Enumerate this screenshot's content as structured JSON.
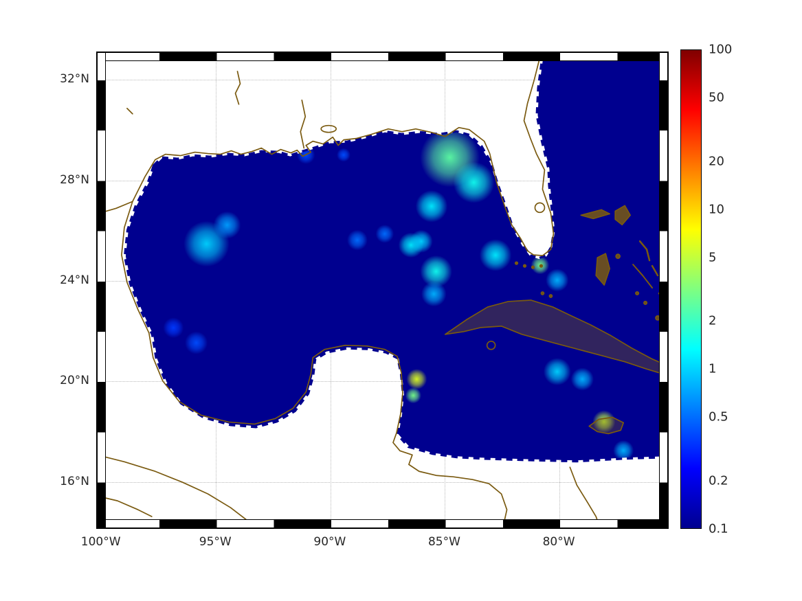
{
  "figure": {
    "colors": {
      "background": "#ffffff",
      "land": "#ffffff",
      "ocean_base": "#00008f",
      "coast": "#7a5a10",
      "grid": "#b9b9b9",
      "tick_label": "#262626",
      "frame_dark": "#000000",
      "frame_light": "#ffffff"
    }
  },
  "chart_data": {
    "type": "heatmap",
    "title": "",
    "description": "Geographic heatmap of the Gulf of Mexico and northwestern Caribbean; log-scaled field (0.1 to 100) over ocean, background value about 0.1 (dark blue) with localized elevated plumes; land white with brown coastlines; jet colormap colorbar at right.",
    "geo": {
      "lon_min": -100.2,
      "lon_max": -75.2,
      "lat_min": 14.1,
      "lat_max": 33.1
    },
    "x_axis": {
      "label": "",
      "ticks": [
        {
          "label": "100°W",
          "lon": -100
        },
        {
          "label": "95°W",
          "lon": -95
        },
        {
          "label": "90°W",
          "lon": -90
        },
        {
          "label": "85°W",
          "lon": -85
        },
        {
          "label": "80°W",
          "lon": -80
        }
      ]
    },
    "y_axis": {
      "label": "",
      "ticks": [
        {
          "label": "16°N",
          "lat": 16
        },
        {
          "label": "20°N",
          "lat": 20
        },
        {
          "label": "24°N",
          "lat": 24
        },
        {
          "label": "28°N",
          "lat": 28
        },
        {
          "label": "32°N",
          "lat": 32
        }
      ]
    },
    "colorbar": {
      "scale": "log",
      "range": [
        0.1,
        100
      ],
      "colormap": "jet",
      "colormap_stops": [
        {
          "t": 0,
          "color": "#00008f"
        },
        {
          "t": 0.125,
          "color": "#0000ff"
        },
        {
          "t": 0.375,
          "color": "#00ffff"
        },
        {
          "t": 0.625,
          "color": "#ffff00"
        },
        {
          "t": 0.875,
          "color": "#ff0000"
        },
        {
          "t": 1,
          "color": "#800000"
        }
      ],
      "ticks": [
        {
          "label": "100",
          "value": 100
        },
        {
          "label": "50",
          "value": 50
        },
        {
          "label": "20",
          "value": 20
        },
        {
          "label": "10",
          "value": 10
        },
        {
          "label": "5",
          "value": 5
        },
        {
          "label": "2",
          "value": 2
        },
        {
          "label": "1",
          "value": 1
        },
        {
          "label": "0.5",
          "value": 0.5
        },
        {
          "label": "0.2",
          "value": 0.2
        },
        {
          "label": "0.1",
          "value": 0.1
        }
      ]
    },
    "background_value": 0.1,
    "hotspots": [
      {
        "lon": -95.4,
        "lat": 25.45,
        "value": 1.0,
        "radius_deg": 1.0
      },
      {
        "lon": -94.5,
        "lat": 26.2,
        "value": 0.7,
        "radius_deg": 0.6
      },
      {
        "lon": -84.75,
        "lat": 28.9,
        "value": 2.5,
        "radius_deg": 1.3
      },
      {
        "lon": -83.7,
        "lat": 27.9,
        "value": 1.5,
        "radius_deg": 0.9
      },
      {
        "lon": -85.55,
        "lat": 26.95,
        "value": 1.2,
        "radius_deg": 0.7
      },
      {
        "lon": -86.45,
        "lat": 25.4,
        "value": 1.2,
        "radius_deg": 0.55
      },
      {
        "lon": -86.0,
        "lat": 25.55,
        "value": 1.0,
        "radius_deg": 0.5
      },
      {
        "lon": -85.35,
        "lat": 24.35,
        "value": 1.5,
        "radius_deg": 0.7
      },
      {
        "lon": -85.45,
        "lat": 23.45,
        "value": 0.8,
        "radius_deg": 0.55
      },
      {
        "lon": -82.75,
        "lat": 25.0,
        "value": 1.2,
        "radius_deg": 0.7
      },
      {
        "lon": -80.8,
        "lat": 24.6,
        "value": 3.0,
        "radius_deg": 0.4
      },
      {
        "lon": -80.05,
        "lat": 24.0,
        "value": 0.8,
        "radius_deg": 0.5
      },
      {
        "lon": -86.2,
        "lat": 20.05,
        "value": 6.0,
        "radius_deg": 0.45
      },
      {
        "lon": -86.35,
        "lat": 19.4,
        "value": 3.0,
        "radius_deg": 0.35
      },
      {
        "lon": -80.05,
        "lat": 20.35,
        "value": 1.0,
        "radius_deg": 0.6
      },
      {
        "lon": -78.95,
        "lat": 20.05,
        "value": 0.8,
        "radius_deg": 0.5
      },
      {
        "lon": -78.0,
        "lat": 18.35,
        "value": 5.0,
        "radius_deg": 0.5
      },
      {
        "lon": -77.15,
        "lat": 17.2,
        "value": 0.8,
        "radius_deg": 0.45
      },
      {
        "lon": -95.85,
        "lat": 21.5,
        "value": 0.4,
        "radius_deg": 0.5
      },
      {
        "lon": -96.85,
        "lat": 22.1,
        "value": 0.35,
        "radius_deg": 0.45
      },
      {
        "lon": -88.8,
        "lat": 25.6,
        "value": 0.5,
        "radius_deg": 0.45
      },
      {
        "lon": -87.6,
        "lat": 25.85,
        "value": 0.5,
        "radius_deg": 0.4
      },
      {
        "lon": -91.05,
        "lat": 29.0,
        "value": 0.4,
        "radius_deg": 0.4
      },
      {
        "lon": -89.4,
        "lat": 29.0,
        "value": 0.4,
        "radius_deg": 0.3
      }
    ]
  }
}
